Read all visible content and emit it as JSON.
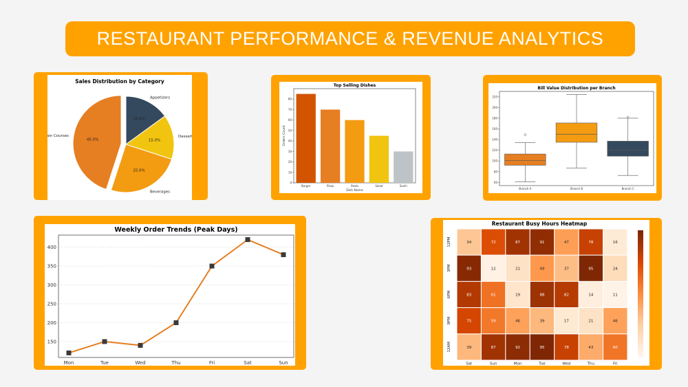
{
  "page": {
    "title": "RESTAURANT PERFORMANCE & REVENUE ANALYTICS"
  },
  "colors": {
    "banner": "#ffa200",
    "panel": "#ffa200",
    "dark_orange": "#d35400",
    "orange": "#e67e22",
    "light_orange": "#f39c12",
    "yellow": "#f1c40f",
    "gray": "#bdc3c7",
    "navy": "#34495e"
  },
  "chart_data": [
    {
      "id": "pie",
      "type": "pie",
      "title": "Sales Distribution by Category",
      "labels": [
        "Appetizers",
        "Desserts",
        "Beverages",
        "Main Courses"
      ],
      "values": [
        15.0,
        15.0,
        25.0,
        45.0
      ],
      "pct_labels": [
        "15.0%",
        "15.0%",
        "25.0%",
        "45.0%"
      ],
      "colors": [
        "#34495e",
        "#f1c40f",
        "#f39c12",
        "#e67e22"
      ],
      "explode": [
        0,
        0,
        0,
        1
      ]
    },
    {
      "id": "bar",
      "type": "bar",
      "title": "Top Selling Dishes",
      "xlabel": "Dish Name",
      "ylabel": "Orders Count",
      "categories": [
        "Burger",
        "Pizza",
        "Pasta",
        "Salad",
        "Sushi"
      ],
      "values": [
        85,
        70,
        60,
        45,
        30
      ],
      "colors": [
        "#d35400",
        "#e67e22",
        "#f39c12",
        "#f1c40f",
        "#bdc3c7"
      ],
      "ylim": [
        0,
        90
      ],
      "yticks": [
        0,
        10,
        20,
        30,
        40,
        50,
        60,
        70,
        80
      ]
    },
    {
      "id": "box",
      "type": "box",
      "title": "Bill Value Distribution per Branch",
      "categories": [
        "Branch A",
        "Branch B",
        "Branch C"
      ],
      "colors": [
        "#e67e22",
        "#f39c12",
        "#34495e"
      ],
      "boxes": [
        {
          "min": 61,
          "q1": 92,
          "median": 101,
          "q3": 113,
          "max": 134,
          "outliers": [
            149
          ]
        },
        {
          "min": 87,
          "q1": 135,
          "median": 150,
          "q3": 171,
          "max": 224,
          "outliers": []
        },
        {
          "min": 73,
          "q1": 109,
          "median": 120,
          "q3": 137,
          "max": 180,
          "outliers": [
            182
          ]
        }
      ],
      "ylim": [
        54,
        230
      ],
      "yticks": [
        60,
        80,
        100,
        120,
        140,
        160,
        180,
        200,
        220
      ]
    },
    {
      "id": "line",
      "type": "line",
      "title": "Weekly Order Trends (Peak Days)",
      "categories": [
        "Mon",
        "Tue",
        "Wed",
        "Thu",
        "Fri",
        "Sat",
        "Sun"
      ],
      "values": [
        120,
        150,
        140,
        200,
        350,
        420,
        380
      ],
      "ylim": [
        108,
        432
      ],
      "yticks": [
        150,
        200,
        250,
        300,
        350,
        400
      ],
      "grid": true
    },
    {
      "id": "heatmap",
      "type": "heatmap",
      "title": "Restaurant Busy Hours Heatmap",
      "columns": [
        "Sat",
        "Sun",
        "Mon",
        "Tue",
        "Wed",
        "Thu",
        "Fri"
      ],
      "rows": [
        "12PM",
        "3PM",
        "6PM",
        "9PM",
        "12AM"
      ],
      "values": [
        [
          34,
          72,
          87,
          91,
          47,
          78,
          16
        ],
        [
          93,
          12,
          21,
          49,
          37,
          95,
          24
        ],
        [
          83,
          61,
          19,
          88,
          82,
          14,
          11
        ],
        [
          75,
          59,
          46,
          39,
          17,
          21,
          46
        ],
        [
          39,
          87,
          92,
          95,
          78,
          43,
          60
        ]
      ],
      "vmin": 10,
      "vmax": 95
    }
  ]
}
